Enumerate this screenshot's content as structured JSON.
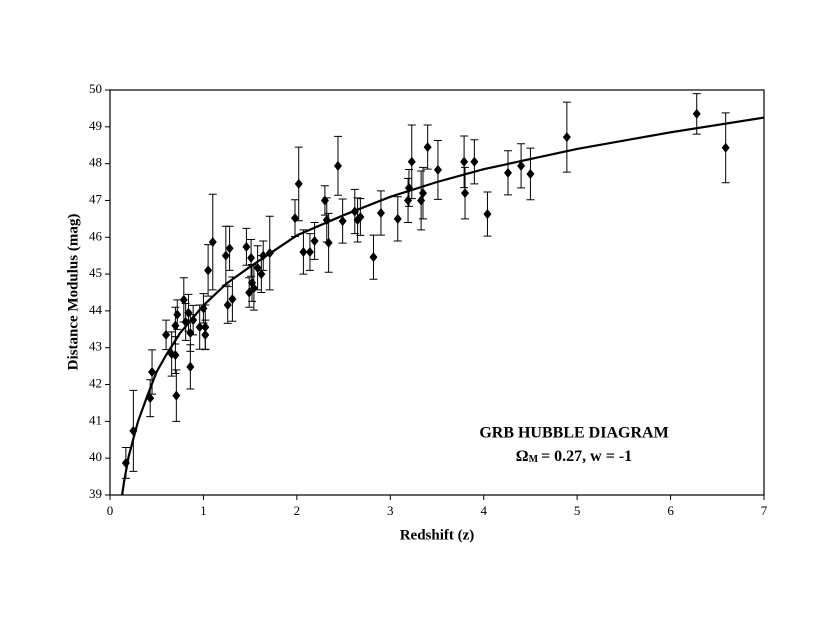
{
  "chart_data": {
    "type": "scatter",
    "xlabel": "Redshift (z)",
    "ylabel": "Distance Modulus (mag)",
    "annotation": {
      "title": "GRB HUBBLE DIAGRAM",
      "symbol": "Ω",
      "subscript": "M",
      "text": "= 0.27, w = -1"
    },
    "xlim": [
      0,
      7
    ],
    "xticks": [
      0,
      1,
      2,
      3,
      4,
      5,
      6,
      7
    ],
    "ylim": [
      39,
      50
    ],
    "yticks": [
      39,
      40,
      41,
      42,
      43,
      44,
      45,
      46,
      47,
      48,
      49,
      50
    ],
    "grid": false,
    "color": "#000000",
    "x": [
      0.17,
      0.25,
      0.43,
      0.45,
      0.6,
      0.66,
      0.7,
      0.71,
      0.72,
      0.7,
      0.79,
      0.81,
      0.84,
      0.86,
      0.86,
      0.89,
      0.96,
      1.0,
      1.02,
      1.02,
      1.05,
      1.1,
      1.24,
      1.26,
      1.28,
      1.31,
      1.46,
      1.49,
      1.51,
      1.52,
      1.54,
      1.58,
      1.62,
      1.64,
      1.71,
      1.98,
      2.02,
      2.07,
      2.14,
      2.19,
      2.3,
      2.32,
      2.34,
      2.44,
      2.49,
      2.62,
      2.65,
      2.68,
      2.82,
      2.9,
      3.08,
      3.2,
      3.19,
      3.23,
      3.33,
      3.35,
      3.4,
      3.51,
      3.79,
      3.8,
      3.9,
      4.04,
      4.26,
      4.4,
      4.5,
      4.89,
      6.28,
      6.59
    ],
    "values": [
      39.87,
      40.74,
      41.63,
      42.34,
      43.35,
      42.83,
      43.6,
      41.7,
      43.9,
      42.8,
      44.3,
      43.7,
      43.95,
      42.48,
      43.4,
      43.75,
      43.56,
      44.07,
      43.35,
      43.56,
      45.1,
      45.87,
      45.5,
      44.16,
      45.7,
      44.32,
      45.74,
      44.5,
      45.44,
      44.76,
      44.62,
      45.17,
      45.0,
      45.5,
      45.57,
      46.52,
      47.45,
      45.6,
      45.6,
      45.9,
      47.0,
      46.47,
      45.85,
      47.94,
      46.44,
      46.7,
      46.47,
      46.55,
      45.46,
      46.66,
      46.5,
      47.34,
      47.0,
      48.05,
      47.0,
      47.2,
      48.45,
      47.83,
      48.05,
      47.2,
      48.05,
      46.63,
      47.75,
      47.94,
      47.72,
      48.72,
      49.35,
      48.43
    ],
    "errors": [
      0.42,
      1.1,
      0.5,
      0.6,
      0.4,
      0.6,
      0.5,
      0.7,
      0.4,
      0.5,
      0.6,
      0.5,
      0.5,
      0.6,
      0.5,
      0.4,
      0.6,
      0.4,
      0.4,
      0.6,
      0.7,
      1.3,
      0.8,
      0.5,
      0.6,
      0.6,
      0.5,
      0.4,
      0.5,
      0.5,
      0.6,
      0.6,
      0.5,
      0.4,
      1.0,
      0.5,
      1.0,
      0.6,
      0.5,
      0.5,
      0.4,
      0.6,
      0.8,
      0.8,
      0.6,
      0.6,
      0.6,
      0.5,
      0.6,
      0.6,
      0.6,
      0.5,
      0.6,
      1.0,
      0.8,
      0.7,
      0.6,
      0.8,
      0.7,
      0.7,
      0.6,
      0.6,
      0.6,
      0.6,
      0.7,
      0.95,
      0.55,
      0.95
    ],
    "curve": {
      "x": [
        0.13,
        0.15,
        0.2,
        0.3,
        0.4,
        0.5,
        0.6,
        0.75,
        1,
        1.25,
        1.5,
        2,
        2.5,
        3,
        3.5,
        4,
        5,
        6,
        7
      ],
      "values": [
        39.0,
        39.35,
        40.05,
        41.0,
        41.7,
        42.35,
        42.8,
        43.4,
        44.15,
        44.75,
        45.2,
        46.05,
        46.6,
        47.1,
        47.5,
        47.85,
        48.4,
        48.85,
        49.25
      ]
    }
  }
}
